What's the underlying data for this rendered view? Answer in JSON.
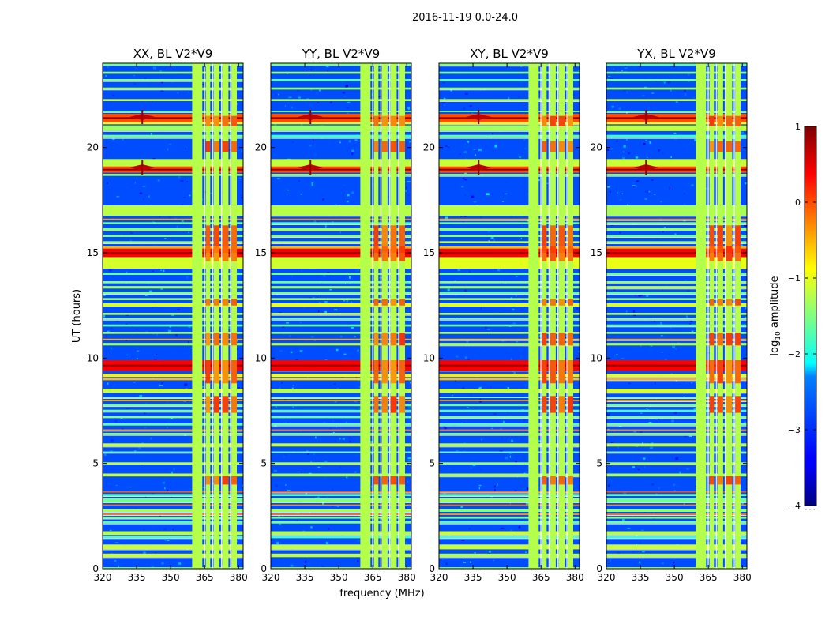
{
  "figure": {
    "title": "2016-11-19 0.0-24.0",
    "xlabel": "frequency (MHz)",
    "ylabel": "UT (hours)",
    "colorbar_label_prefix": "log",
    "colorbar_label_sub": "10",
    "colorbar_label_suffix": " amplitude",
    "colorbar_ticks": [
      {
        "value": 1,
        "label": "1"
      },
      {
        "value": 0,
        "label": "0"
      },
      {
        "value": -1,
        "label": "−1"
      },
      {
        "value": -2,
        "label": "−2"
      },
      {
        "value": -3,
        "label": "−3"
      },
      {
        "value": -4,
        "label": "−4"
      }
    ],
    "colorbar_range": [
      -4,
      1
    ],
    "colormap": "jet",
    "colorbar_under_marker": "·····"
  },
  "chart_data": [
    {
      "type": "heatmap",
      "title": "XX, BL V2*V9",
      "xlim": [
        320,
        382
      ],
      "ylim": [
        0,
        24
      ],
      "xticks": [
        320,
        335,
        350,
        365,
        380
      ],
      "yticks": [
        0,
        5,
        10,
        15,
        20
      ],
      "colorbar_range": [
        -4,
        1
      ],
      "background_level": -3.0,
      "flagged_channel_bands_mhz": [
        [
          359.5,
          364.0
        ],
        [
          365.5,
          367.5
        ],
        [
          369.0,
          371.5
        ],
        [
          372.8,
          375.5
        ],
        [
          376.8,
          379.2
        ]
      ],
      "strong_rfi_hours": [
        [
          14.8,
          15.2
        ],
        [
          9.4,
          9.9
        ],
        [
          21.2,
          21.6
        ],
        [
          18.8,
          19.1
        ]
      ]
    },
    {
      "type": "heatmap",
      "title": "YY, BL V2*V9",
      "xlim": [
        320,
        382
      ],
      "ylim": [
        0,
        24
      ],
      "xticks": [
        320,
        335,
        350,
        365,
        380
      ],
      "yticks": [
        0,
        5,
        10,
        15,
        20
      ],
      "colorbar_range": [
        -4,
        1
      ],
      "background_level": -3.0,
      "flagged_channel_bands_mhz": [
        [
          359.5,
          364.0
        ],
        [
          365.5,
          367.5
        ],
        [
          369.0,
          371.5
        ],
        [
          372.8,
          375.5
        ],
        [
          376.8,
          379.2
        ]
      ],
      "strong_rfi_hours": [
        [
          14.8,
          15.2
        ],
        [
          9.4,
          9.9
        ],
        [
          21.2,
          21.6
        ],
        [
          18.8,
          19.1
        ]
      ]
    },
    {
      "type": "heatmap",
      "title": "XY, BL V2*V9",
      "xlim": [
        320,
        382
      ],
      "ylim": [
        0,
        24
      ],
      "xticks": [
        320,
        335,
        350,
        365,
        380
      ],
      "yticks": [
        0,
        5,
        10,
        15,
        20
      ],
      "colorbar_range": [
        -4,
        1
      ],
      "background_level": -3.0,
      "flagged_channel_bands_mhz": [
        [
          359.5,
          364.0
        ],
        [
          365.5,
          367.5
        ],
        [
          369.0,
          371.5
        ],
        [
          372.8,
          375.5
        ],
        [
          376.8,
          379.2
        ]
      ],
      "strong_rfi_hours": [
        [
          14.8,
          15.2
        ],
        [
          9.4,
          9.9
        ],
        [
          21.2,
          21.6
        ],
        [
          18.8,
          19.1
        ]
      ]
    },
    {
      "type": "heatmap",
      "title": "YX, BL V2*V9",
      "xlim": [
        320,
        382
      ],
      "ylim": [
        0,
        24
      ],
      "xticks": [
        320,
        335,
        350,
        365,
        380
      ],
      "yticks": [
        0,
        5,
        10,
        15,
        20
      ],
      "colorbar_range": [
        -4,
        1
      ],
      "background_level": -3.0,
      "flagged_channel_bands_mhz": [
        [
          359.5,
          364.0
        ],
        [
          365.5,
          367.5
        ],
        [
          369.0,
          371.5
        ],
        [
          372.8,
          375.5
        ],
        [
          376.8,
          379.2
        ]
      ],
      "strong_rfi_hours": [
        [
          14.8,
          15.2
        ],
        [
          9.4,
          9.9
        ],
        [
          21.2,
          21.6
        ],
        [
          18.8,
          19.1
        ]
      ]
    }
  ]
}
